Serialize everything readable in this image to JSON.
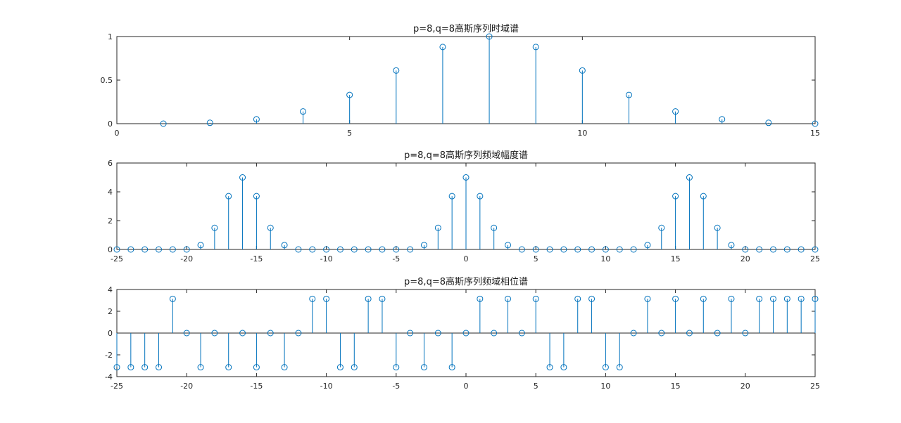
{
  "chart_data": [
    {
      "type": "stem",
      "title": "p=8,q=8高斯序列时域谱",
      "xlim": [
        0,
        15
      ],
      "ylim": [
        0,
        1
      ],
      "xticks": [
        0,
        5,
        10,
        15
      ],
      "yticks": [
        0,
        0.5,
        1
      ],
      "xtick_labels": [
        "0",
        "5",
        "10",
        "15"
      ],
      "ytick_labels": [
        "0",
        "0.5",
        "1"
      ],
      "x": [
        1,
        2,
        3,
        4,
        5,
        6,
        7,
        8,
        9,
        10,
        11,
        12,
        13,
        14,
        15
      ],
      "y": [
        0.0,
        0.01,
        0.05,
        0.14,
        0.33,
        0.61,
        0.88,
        1.0,
        0.88,
        0.61,
        0.33,
        0.14,
        0.05,
        0.01,
        0.0
      ]
    },
    {
      "type": "stem",
      "title": "p=8,q=8高斯序列频域幅度谱",
      "xlim": [
        -25,
        25
      ],
      "ylim": [
        0,
        6
      ],
      "xticks": [
        -25,
        -20,
        -15,
        -10,
        -5,
        0,
        5,
        10,
        15,
        20,
        25
      ],
      "yticks": [
        0,
        2,
        4,
        6
      ],
      "xtick_labels": [
        "-25",
        "-20",
        "-15",
        "-10",
        "-5",
        "0",
        "5",
        "10",
        "15",
        "20",
        "25"
      ],
      "ytick_labels": [
        "0",
        "2",
        "4",
        "6"
      ],
      "x": [
        -25,
        -24,
        -23,
        -22,
        -21,
        -20,
        -19,
        -18,
        -17,
        -16,
        -15,
        -14,
        -13,
        -12,
        -11,
        -10,
        -9,
        -8,
        -7,
        -6,
        -5,
        -4,
        -3,
        -2,
        -1,
        0,
        1,
        2,
        3,
        4,
        5,
        6,
        7,
        8,
        9,
        10,
        11,
        12,
        13,
        14,
        15,
        16,
        17,
        18,
        19,
        20,
        21,
        22,
        23,
        24,
        25
      ],
      "y": [
        0.0,
        0.0,
        0.0,
        0.0,
        0.0,
        0.0,
        0.3,
        1.5,
        3.7,
        5.0,
        3.7,
        1.5,
        0.3,
        0.0,
        0.0,
        0.0,
        0.0,
        0.0,
        0.0,
        0.0,
        0.0,
        0.0,
        0.3,
        1.5,
        3.7,
        5.0,
        3.7,
        1.5,
        0.3,
        0.0,
        0.0,
        0.0,
        0.0,
        0.0,
        0.0,
        0.0,
        0.0,
        0.0,
        0.3,
        1.5,
        3.7,
        5.0,
        3.7,
        1.5,
        0.3,
        0.0,
        0.0,
        0.0,
        0.0,
        0.0,
        0.0
      ]
    },
    {
      "type": "stem",
      "title": "p=8,q=8高斯序列频域相位谱",
      "xlim": [
        -25,
        25
      ],
      "ylim": [
        -4,
        4
      ],
      "xticks": [
        -25,
        -20,
        -15,
        -10,
        -5,
        0,
        5,
        10,
        15,
        20,
        25
      ],
      "yticks": [
        -4,
        -2,
        0,
        2,
        4
      ],
      "xtick_labels": [
        "-25",
        "-20",
        "-15",
        "-10",
        "-5",
        "0",
        "5",
        "10",
        "15",
        "20",
        "25"
      ],
      "ytick_labels": [
        "-4",
        "-2",
        "0",
        "2",
        "4"
      ],
      "x": [
        -25,
        -24,
        -23,
        -22,
        -21,
        -20,
        -19,
        -18,
        -17,
        -16,
        -15,
        -14,
        -13,
        -12,
        -11,
        -10,
        -9,
        -8,
        -7,
        -6,
        -5,
        -4,
        -3,
        -2,
        -1,
        0,
        1,
        2,
        3,
        4,
        5,
        6,
        7,
        8,
        9,
        10,
        11,
        12,
        13,
        14,
        15,
        16,
        17,
        18,
        19,
        20,
        21,
        22,
        23,
        24,
        25
      ],
      "y": [
        -3.14,
        -3.14,
        -3.14,
        -3.14,
        3.14,
        0,
        -3.14,
        0,
        -3.14,
        0,
        -3.14,
        0,
        -3.14,
        0,
        3.14,
        3.14,
        -3.14,
        -3.14,
        3.14,
        3.14,
        -3.14,
        0,
        -3.14,
        0,
        -3.14,
        0,
        3.14,
        0,
        3.14,
        0,
        3.14,
        -3.14,
        -3.14,
        3.14,
        3.14,
        -3.14,
        -3.14,
        0,
        3.14,
        0,
        3.14,
        0,
        3.14,
        0,
        3.14,
        0,
        3.14,
        3.14,
        3.14,
        3.14,
        3.14
      ]
    }
  ],
  "colors": {
    "stem": "#0072BD",
    "axes": "#262626"
  }
}
